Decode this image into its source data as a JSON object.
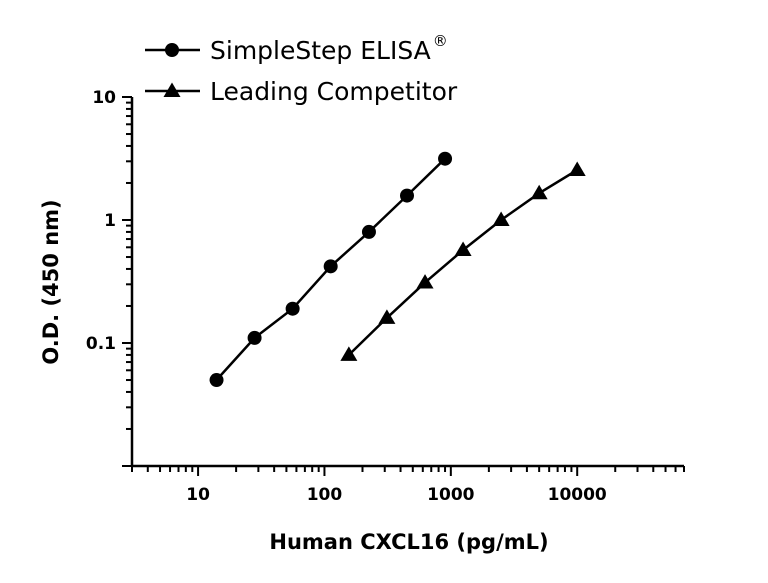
{
  "chart_data": {
    "type": "line",
    "xlabel": "Human CXCL16 (pg/mL)",
    "ylabel": "O.D. (450 nm)",
    "x_scale": "log",
    "y_scale": "log",
    "xlim": [
      3,
      70000
    ],
    "ylim": [
      0.01,
      10
    ],
    "x_ticks": [
      10,
      100,
      1000,
      10000
    ],
    "x_tick_labels": [
      "10",
      "100",
      "1000",
      "10000"
    ],
    "y_ticks": [
      0.1,
      1,
      10
    ],
    "y_tick_labels": [
      "0.1",
      "1",
      "10"
    ],
    "legend_position": "top",
    "series": [
      {
        "name": "SimpleStep ELISA",
        "name_superscript": "®",
        "marker": "circle",
        "color": "#000000",
        "x": [
          14,
          28,
          56,
          112,
          225,
          450,
          900
        ],
        "y": [
          0.05,
          0.11,
          0.19,
          0.42,
          0.8,
          1.58,
          3.15
        ]
      },
      {
        "name": "Leading Competitor",
        "marker": "triangle",
        "color": "#000000",
        "x": [
          156,
          312,
          625,
          1250,
          2500,
          5000,
          10000
        ],
        "y": [
          0.08,
          0.16,
          0.31,
          0.57,
          1.0,
          1.65,
          2.55
        ]
      }
    ]
  }
}
